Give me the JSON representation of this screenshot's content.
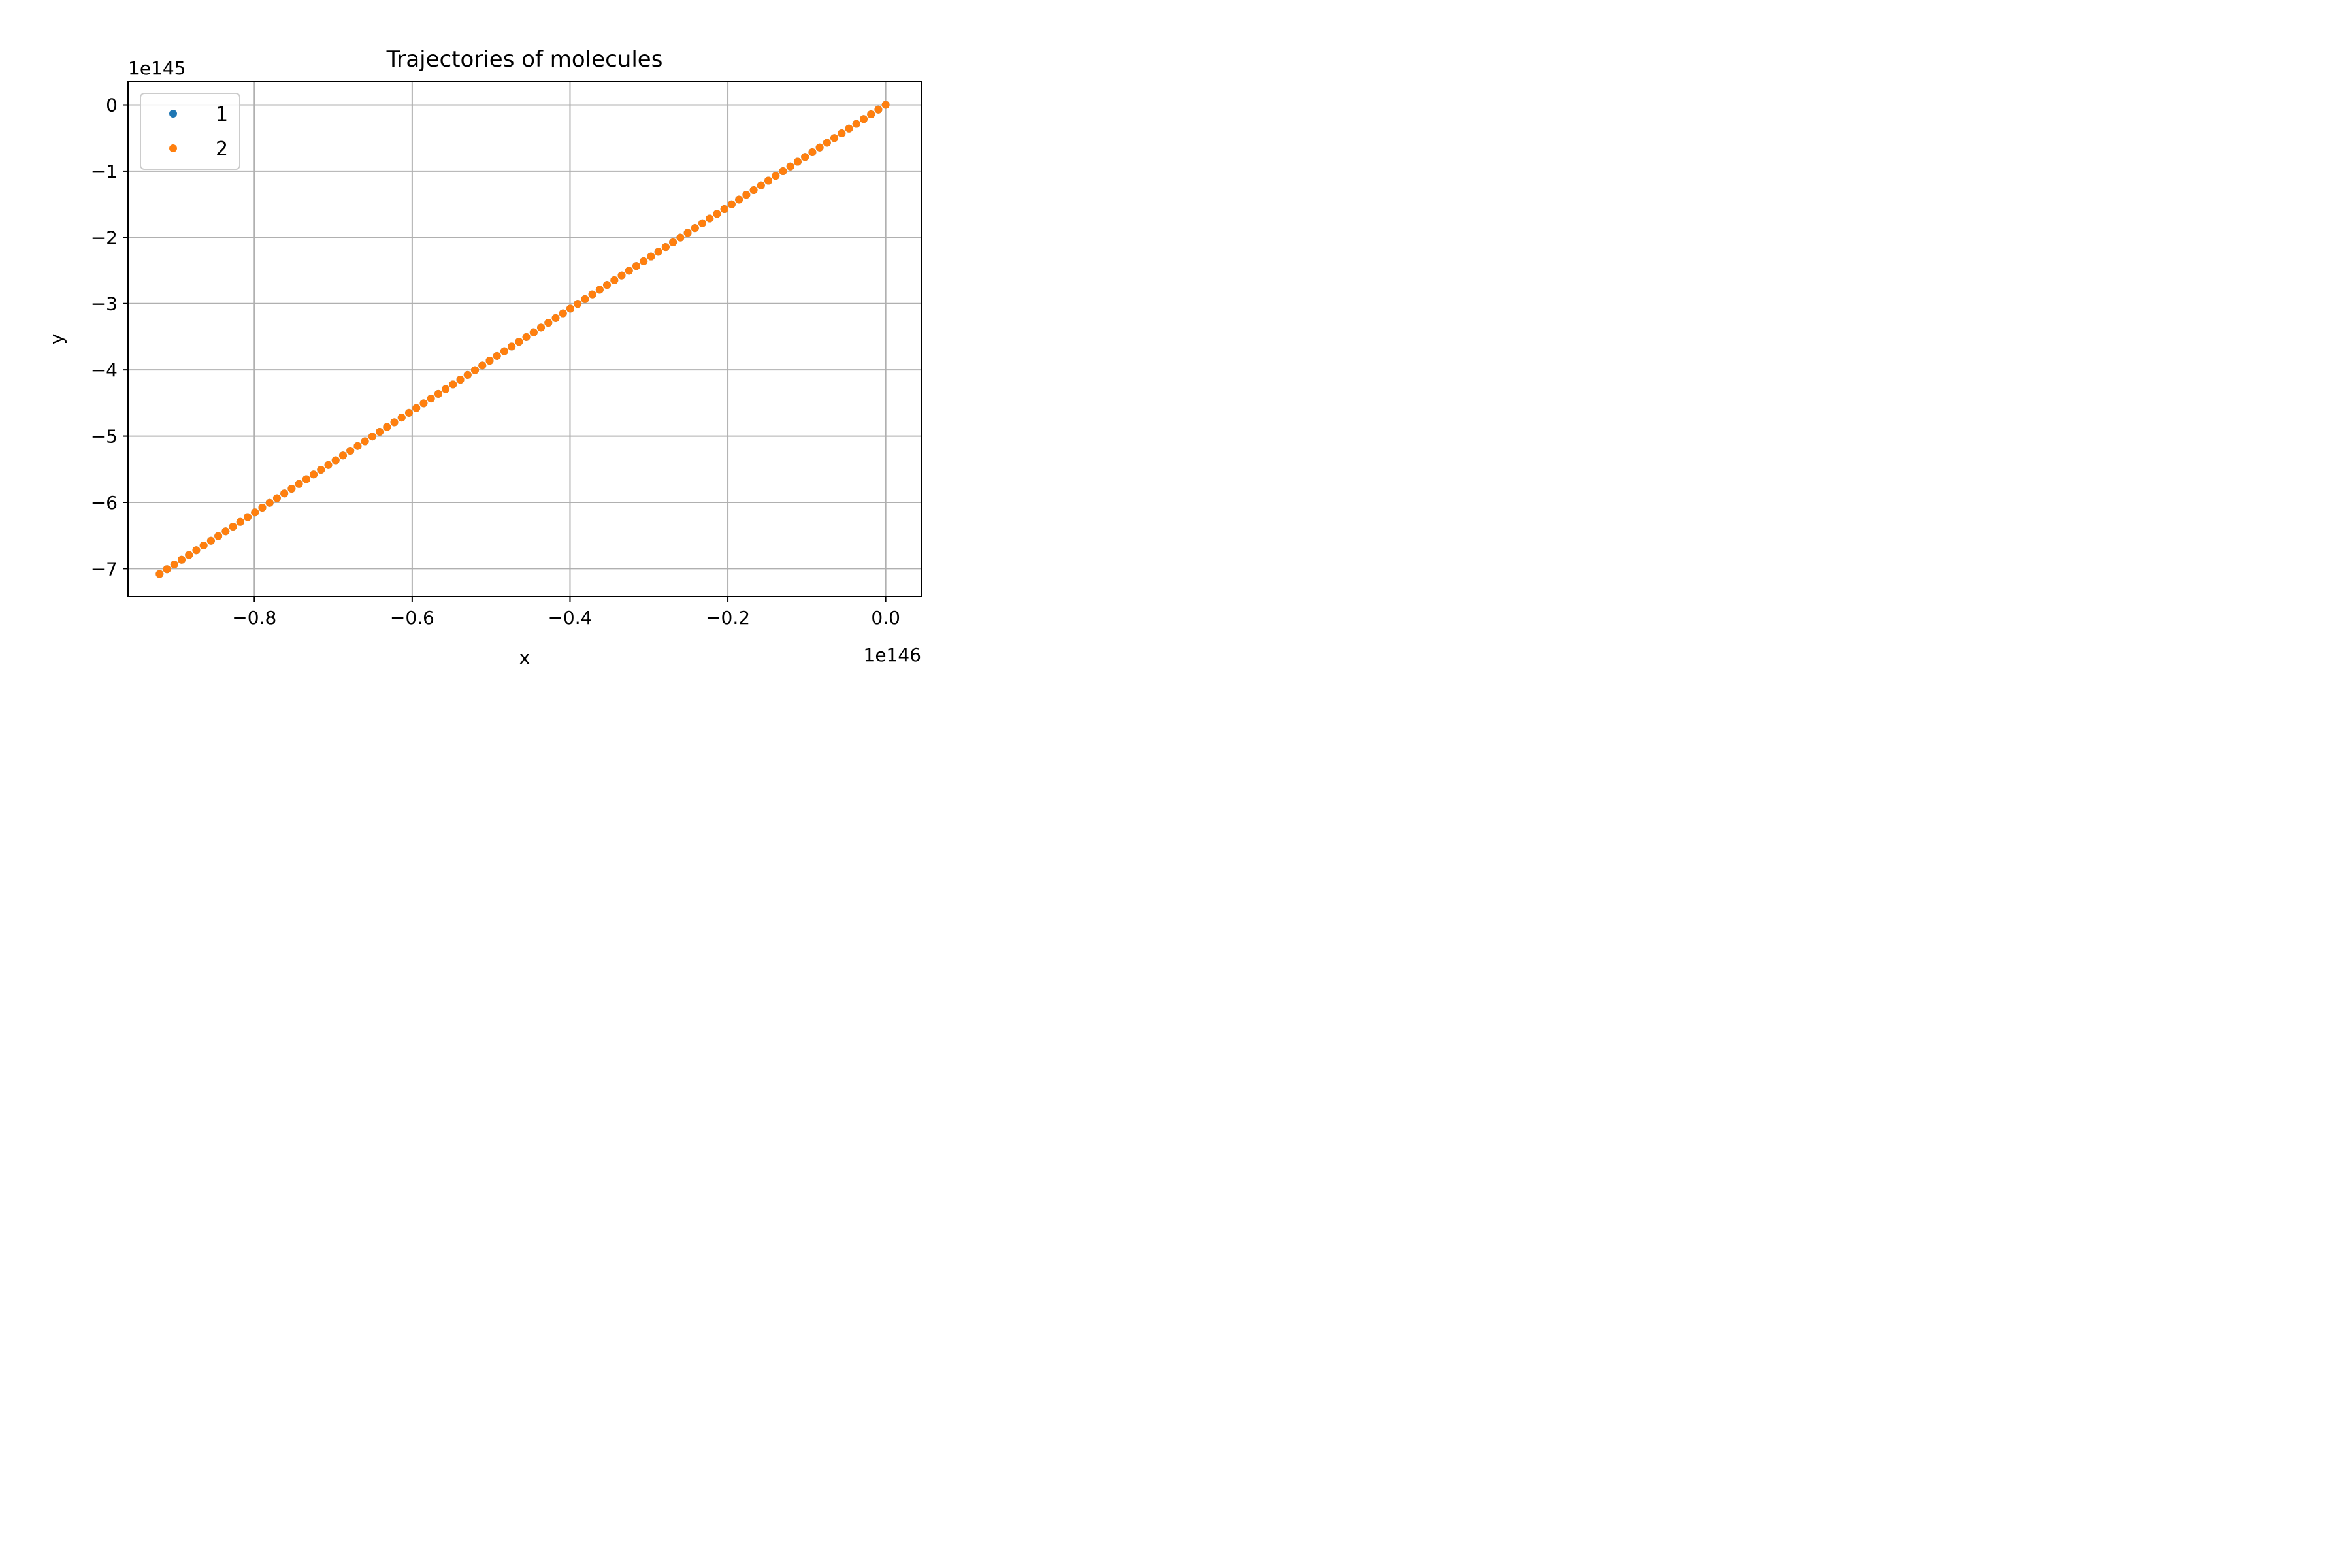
{
  "chart_data": {
    "type": "scatter",
    "title": "Trajectories of molecules",
    "xlabel": "x",
    "ylabel": "y",
    "x_offset_text": "1e146",
    "y_offset_text": "1e145",
    "x_scale_exponent": 146,
    "y_scale_exponent": 145,
    "xlim": [
      -0.96,
      0.045
    ],
    "ylim": [
      -7.42,
      0.35
    ],
    "x_ticks": [
      -0.8,
      -0.6,
      -0.4,
      -0.2,
      0.0
    ],
    "x_tick_labels": [
      "−0.8",
      "−0.6",
      "−0.4",
      "−0.2",
      "0.0"
    ],
    "y_ticks": [
      0,
      -1,
      -2,
      -3,
      -4,
      -5,
      -6,
      -7
    ],
    "y_tick_labels": [
      "0",
      "−1",
      "−2",
      "−3",
      "−4",
      "−5",
      "−6",
      "−7"
    ],
    "grid": true,
    "legend_position": "top-left",
    "series": [
      {
        "name": "1",
        "color": "#1f77b4",
        "marker": "circle",
        "x_start": -0.92,
        "x_end": 0.0,
        "y_start": -7.08,
        "y_end": 0.0,
        "count": 100
      },
      {
        "name": "2",
        "color": "#ff7f0e",
        "marker": "circle",
        "x_start": -0.92,
        "x_end": 0.0,
        "y_start": -7.08,
        "y_end": 0.0,
        "count": 100
      }
    ]
  }
}
